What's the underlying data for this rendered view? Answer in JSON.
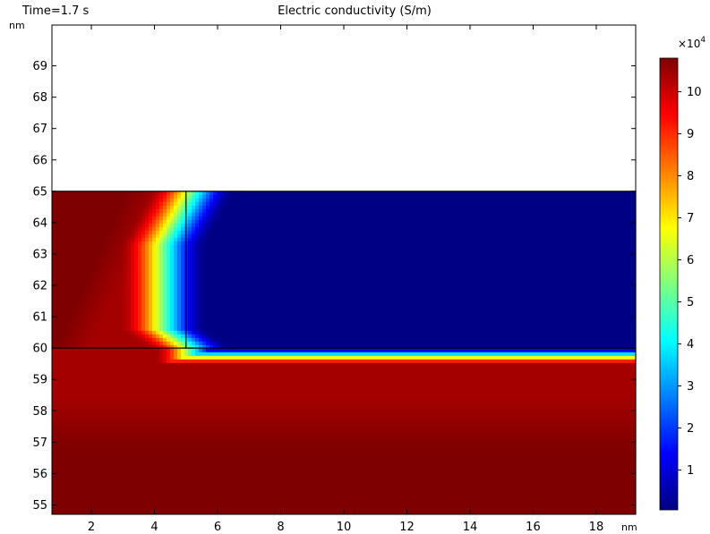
{
  "header": {
    "time_label": "Time=1.7 s",
    "title": "Electric conductivity (S/m)"
  },
  "chart_data": {
    "type": "heatmap",
    "title": "Electric conductivity (S/m)",
    "time_label": "Time=1.7 s",
    "x_unit": "nm",
    "y_unit": "nm",
    "xlim": [
      0.75,
      19.25
    ],
    "ylim": [
      54.7,
      70.3
    ],
    "x_ticks": [
      2,
      4,
      6,
      8,
      10,
      12,
      14,
      16,
      18
    ],
    "y_ticks": [
      55,
      56,
      57,
      58,
      59,
      60,
      61,
      62,
      63,
      64,
      65,
      66,
      67,
      68,
      69
    ],
    "geometry_lines": [
      {
        "name": "top-boundary",
        "x": [
          0.75,
          19.25
        ],
        "y": [
          65,
          65
        ]
      },
      {
        "name": "interface",
        "x": [
          0.75,
          19.25
        ],
        "y": [
          60,
          60
        ]
      },
      {
        "name": "vertical-boundary",
        "x": [
          5,
          5
        ],
        "y": [
          60,
          65
        ]
      },
      {
        "name": "right-boundary",
        "x": [
          19.25,
          19.25
        ],
        "y": [
          54.7,
          65
        ]
      }
    ],
    "field_domain": {
      "x": [
        0.75,
        19.25
      ],
      "y": [
        54.7,
        65
      ]
    },
    "colorbar": {
      "multiplier_base": "×10",
      "multiplier_exp": "4",
      "min": 0.05,
      "max": 10.8,
      "ticks": [
        1,
        2,
        3,
        4,
        5,
        6,
        7,
        8,
        9,
        10
      ],
      "colormap": "rainbow",
      "colors": [
        "#00007f",
        "#0000ff",
        "#007fff",
        "#00ffff",
        "#7fff7f",
        "#ffff00",
        "#ff7f00",
        "#ff0000",
        "#7f0000"
      ]
    }
  }
}
